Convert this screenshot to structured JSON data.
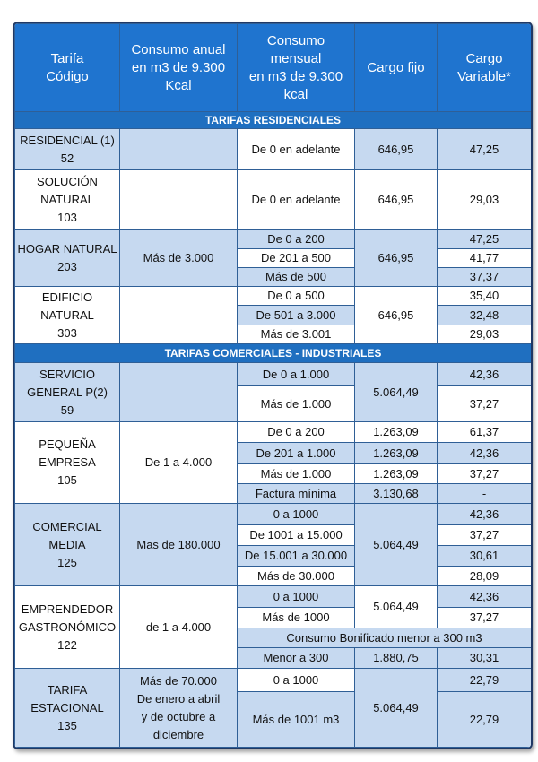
{
  "table": {
    "header": [
      "Tarifa\nCódigo",
      "Consumo anual\nen m3 de 9.300\nKcal",
      "Consumo\nmensual\nen m3 de 9.300\nkcal",
      "Cargo fijo",
      "Cargo\nVariable*"
    ],
    "sections": [
      {
        "title": "TARIFAS RESIDENCIALES",
        "tariffs": [
          {
            "name": "RESIDENCIAL (1)",
            "code": "52",
            "fixed": "646,95",
            "rows": [
              {
                "range": "De 0 en adelante",
                "variable": "47,25"
              }
            ]
          },
          {
            "name": "SOLUCIÓN\nNATURAL",
            "code": "103",
            "fixed": "646,95",
            "rows": [
              {
                "range": "De 0 en adelante",
                "variable": "29,03"
              }
            ]
          },
          {
            "name": "HOGAR NATURAL",
            "code": "203",
            "annual": "Más de 3.000",
            "fixed": "646,95",
            "rows": [
              {
                "range": "De 0 a 200",
                "variable": "47,25"
              },
              {
                "range": "De 201 a 500",
                "variable": "41,77"
              },
              {
                "range": "Más de 500",
                "variable": "37,37"
              }
            ]
          },
          {
            "name": "EDIFICIO\nNATURAL",
            "code": "303",
            "fixed": "646,95",
            "rows": [
              {
                "range": "De 0 a 500",
                "variable": "35,40"
              },
              {
                "range": "De 501 a 3.000",
                "variable": "32,48"
              },
              {
                "range": "Más de 3.001",
                "variable": "29,03"
              }
            ]
          }
        ]
      },
      {
        "title": "TARIFAS COMERCIALES - INDUSTRIALES",
        "tariffs": [
          {
            "name": "SERVICIO\nGENERAL P(2)",
            "code": "59",
            "fixed": "5.064,49",
            "rows": [
              {
                "range": "De 0 a 1.000",
                "variable": "42,36"
              },
              {
                "range": "Más de 1.000",
                "variable": "37,27"
              }
            ]
          },
          {
            "name": "PEQUEÑA\nEMPRESA",
            "code": "105",
            "annual": "De 1 a 4.000",
            "rows": [
              {
                "range": "De 0 a 200",
                "fixed": "1.263,09",
                "variable": "61,37"
              },
              {
                "range": "De 201 a 1.000",
                "fixed": "1.263,09",
                "variable": "42,36"
              },
              {
                "range": "Más de 1.000",
                "fixed": "1.263,09",
                "variable": "37,27"
              },
              {
                "range": "Factura mínima",
                "fixed": "3.130,68",
                "variable": "-"
              }
            ]
          },
          {
            "name": "COMERCIAL\nMEDIA",
            "code": "125",
            "annual": "Mas de 180.000",
            "fixed": "5.064,49",
            "rows": [
              {
                "range": "0 a 1000",
                "variable": "42,36"
              },
              {
                "range": "De 1001 a 15.000",
                "variable": "37,27"
              },
              {
                "range": "De 15.001 a 30.000",
                "variable": "30,61"
              },
              {
                "range": "Más de 30.000",
                "variable": "28,09"
              }
            ]
          },
          {
            "name": "EMPRENDEDOR\nGASTRONÓMICO",
            "code": "122",
            "annual": "de 1 a 4.000",
            "fixed": "5.064,49",
            "rows": [
              {
                "range": "0 a 1000",
                "variable": "42,36"
              },
              {
                "range": "Más de 1000",
                "variable": "37,27"
              }
            ],
            "bonus": {
              "note": "Consumo Bonificado menor a 300 m3",
              "range": "Menor a 300",
              "fixed": "1.880,75",
              "variable": "30,31"
            }
          },
          {
            "name": "TARIFA\nESTACIONAL",
            "code": "135",
            "annual": "Más de 70.000\nDe enero a abril\ny de octubre a\ndiciembre",
            "fixed": "5.064,49",
            "rows": [
              {
                "range": "0 a 1000",
                "variable": "22,79"
              },
              {
                "range": "Más de 1001 m3",
                "variable": "22,79"
              }
            ]
          }
        ]
      }
    ]
  }
}
